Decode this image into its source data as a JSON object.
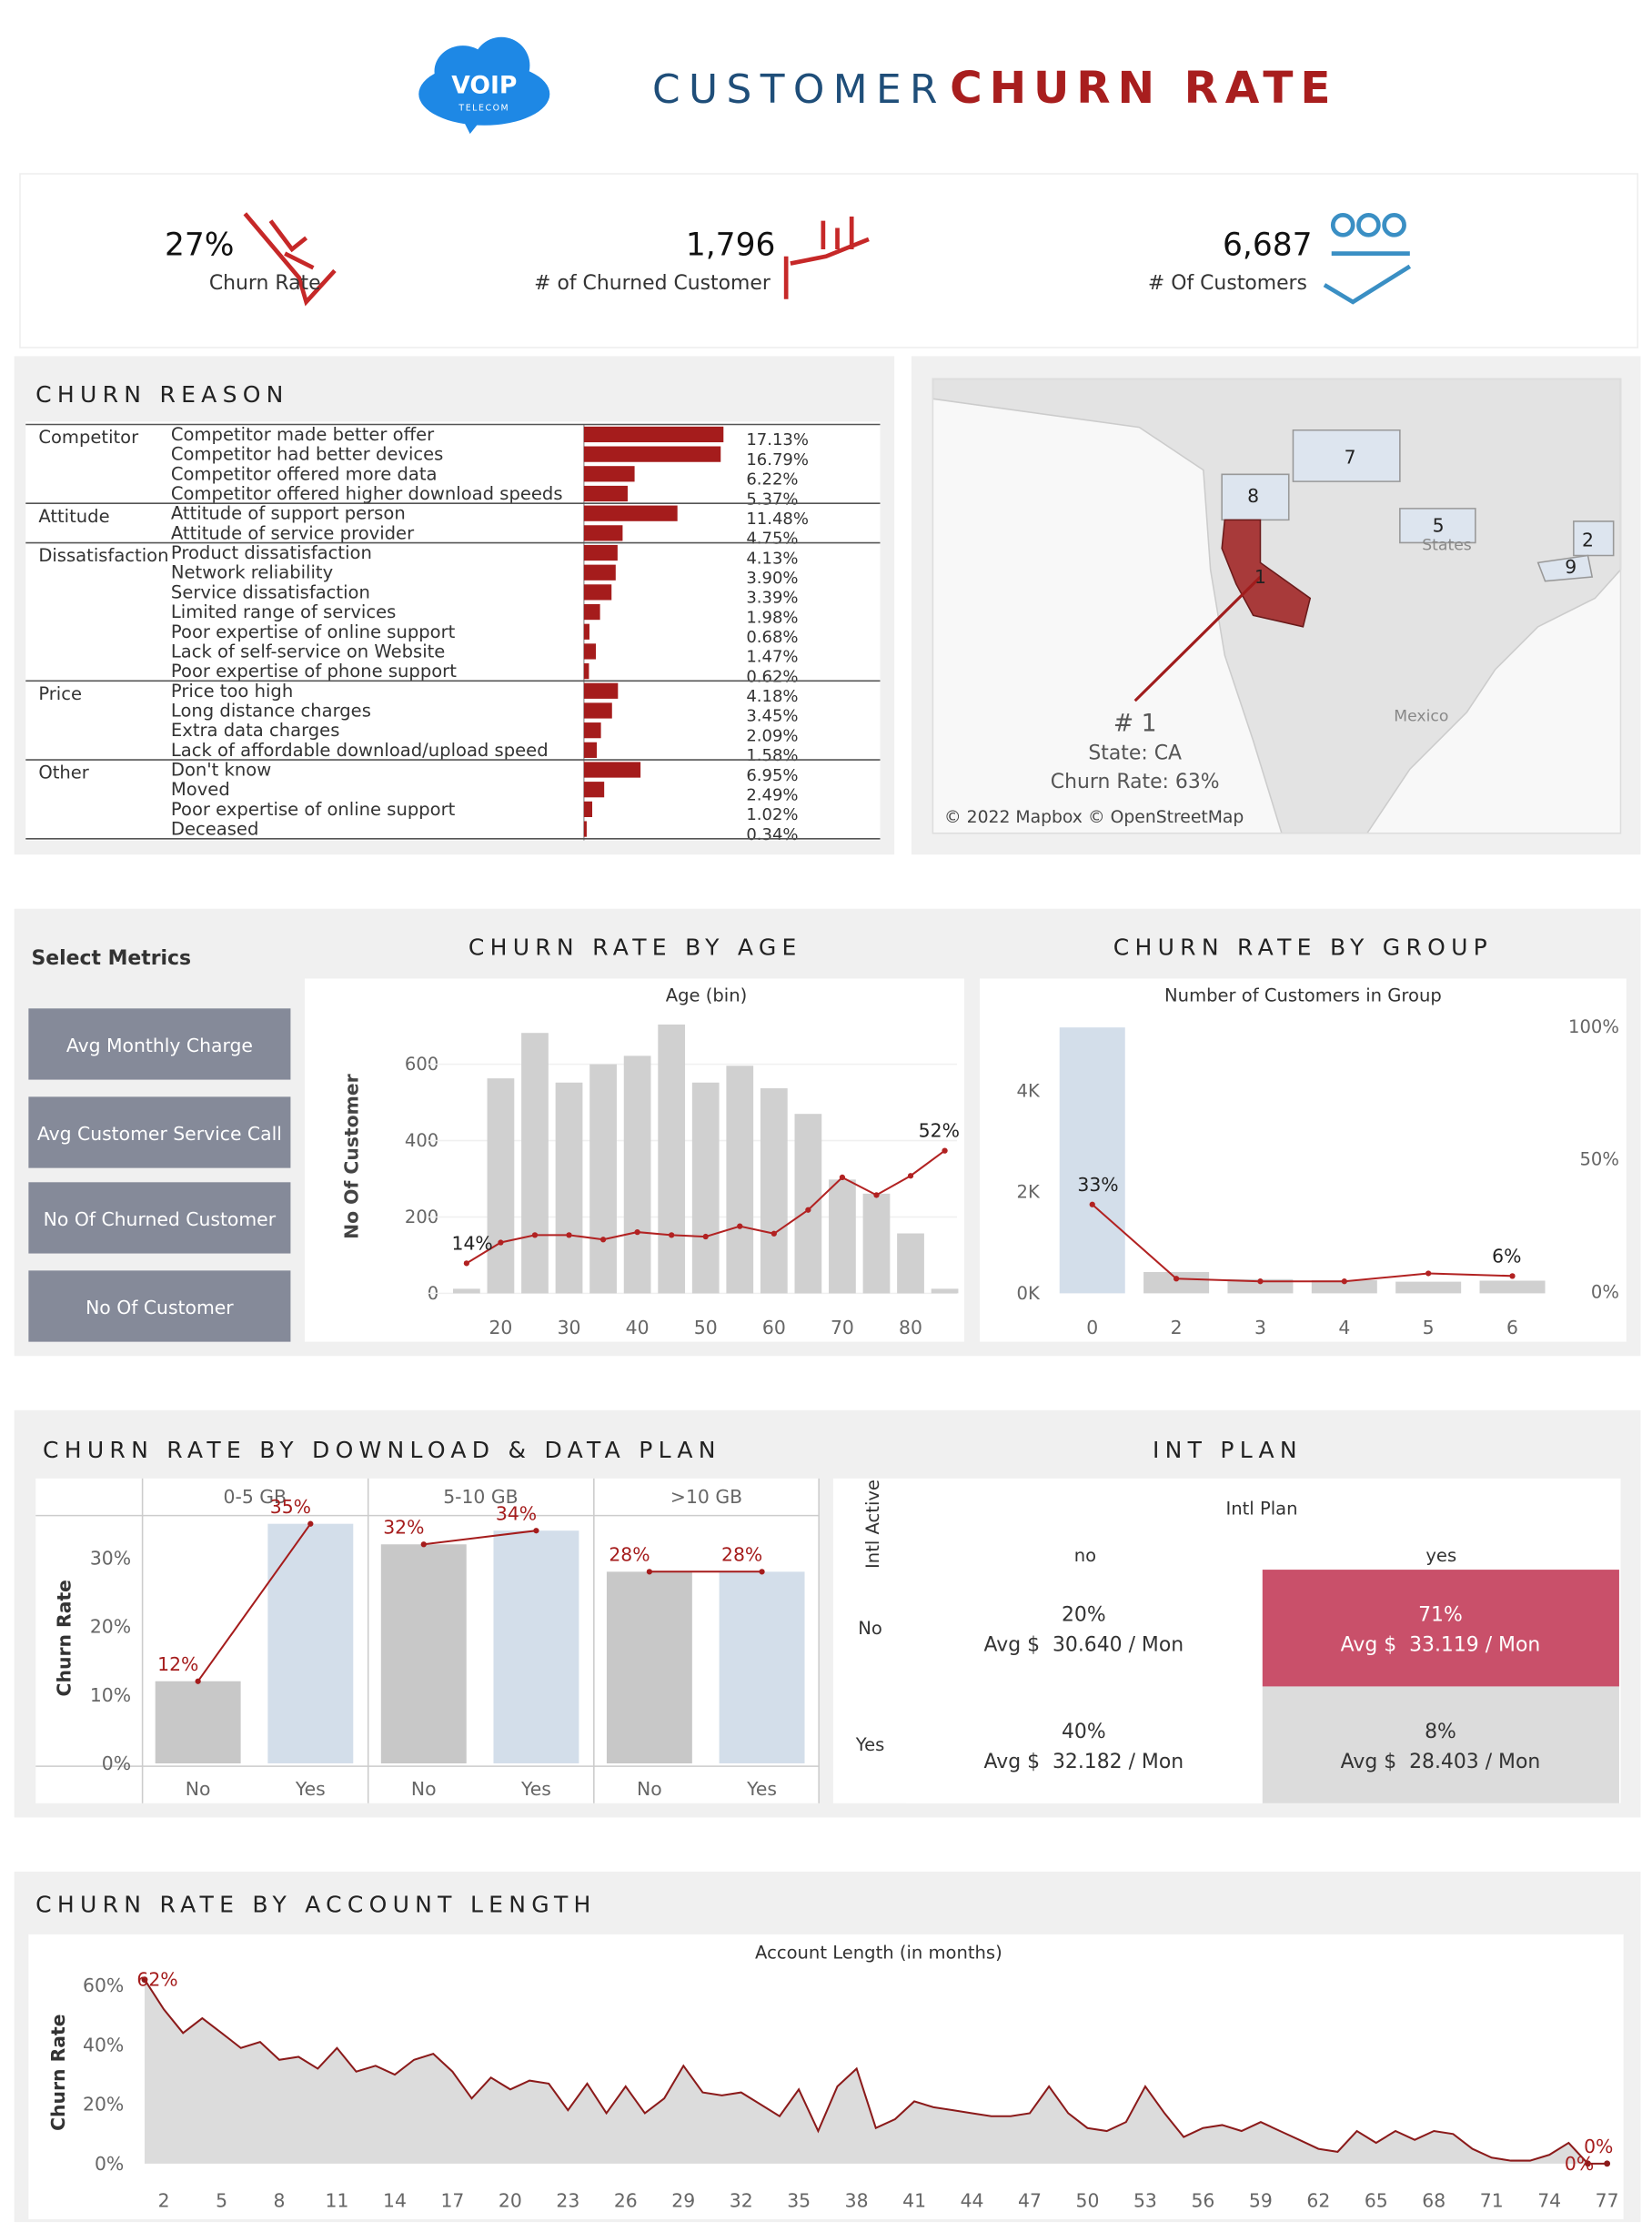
{
  "header": {
    "logo": "VOIP",
    "logo_sub": "TELECOM",
    "title_a": "CUSTOMER",
    "title_b": "CHURN RATE"
  },
  "kpis": [
    {
      "value": "27%",
      "label": "Churn Rate"
    },
    {
      "value": "1,796",
      "label": "# of Churned Customer"
    },
    {
      "value": "6,687",
      "label": "# Of Customers"
    }
  ],
  "map": {
    "labels": [
      "1",
      "2",
      "5",
      "7",
      "8",
      "9"
    ],
    "country_labels": [
      "States",
      "Mexico"
    ],
    "tooltip": [
      "# 1",
      "State: CA",
      "Churn Rate: 63%"
    ],
    "credit": "© 2022 Mapbox © OpenStreetMap"
  },
  "metrics": {
    "title": "Select Metrics",
    "buttons": [
      "Avg Monthly Charge",
      "Avg Customer Service Call",
      "No Of Churned Customer",
      "No Of Customer"
    ]
  },
  "intl_plan": {
    "title": "INT PLAN",
    "column_header": "Intl Plan",
    "row_header": "Intl Active",
    "columns": [
      "no",
      "yes"
    ],
    "rows": [
      "No",
      "Yes"
    ],
    "cells": [
      [
        {
          "rate": "20%",
          "avg": "Avg $  30.640 / Mon"
        },
        {
          "rate": "71%",
          "avg": "Avg $  33.119 / Mon"
        }
      ],
      [
        {
          "rate": "40%",
          "avg": "Avg $  32.182 / Mon"
        },
        {
          "rate": "8%",
          "avg": "Avg $  28.403 / Mon"
        }
      ]
    ],
    "colors": [
      [
        "#ffffff",
        "#c9506a"
      ],
      [
        "#ffffff",
        "#dcdcdc"
      ]
    ]
  },
  "chart_data": [
    {
      "type": "hbar",
      "title": "CHURN REASON",
      "color": "#a51c1c",
      "groups": [
        {
          "name": "Competitor",
          "categories": [
            "Competitor made better offer",
            "Competitor had better devices",
            "Competitor offered more data",
            "Competitor offered higher download speeds"
          ],
          "values": [
            17.13,
            16.79,
            6.22,
            5.37
          ],
          "value_labels": [
            "17.13%",
            "16.79%",
            "6.22%",
            "5.37%"
          ]
        },
        {
          "name": "Attitude",
          "categories": [
            "Attitude of support person",
            "Attitude of service provider"
          ],
          "values": [
            11.48,
            4.75
          ],
          "value_labels": [
            "11.48%",
            "4.75%"
          ]
        },
        {
          "name": "Dissatisfaction",
          "categories": [
            "Product dissatisfaction",
            "Network reliability",
            "Service dissatisfaction",
            "Limited range of services",
            "Poor expertise of online support",
            "Lack of self-service on Website",
            "Poor expertise of phone support"
          ],
          "values": [
            4.13,
            3.9,
            3.39,
            1.98,
            0.68,
            1.47,
            0.62
          ],
          "value_labels": [
            "4.13%",
            "3.90%",
            "3.39%",
            "1.98%",
            "0.68%",
            "1.47%",
            "0.62%"
          ]
        },
        {
          "name": "Price",
          "categories": [
            "Price too high",
            "Long distance charges",
            "Extra data charges",
            "Lack of affordable download/upload speed"
          ],
          "values": [
            4.18,
            3.45,
            2.09,
            1.58
          ],
          "value_labels": [
            "4.18%",
            "3.45%",
            "2.09%",
            "1.58%"
          ]
        },
        {
          "name": "Other",
          "categories": [
            "Don't know",
            "Moved",
            "Poor expertise of online support",
            "Deceased"
          ],
          "values": [
            6.95,
            2.49,
            1.02,
            0.34
          ],
          "value_labels": [
            "6.95%",
            "2.49%",
            "1.02%",
            "0.34%"
          ]
        }
      ]
    },
    {
      "type": "combo",
      "title": "CHURN RATE BY AGE",
      "x_label": "Age (bin)",
      "y_label": "No Of Customer",
      "grid": true,
      "x": [
        15,
        20,
        25,
        30,
        35,
        40,
        45,
        50,
        55,
        60,
        65,
        70,
        75,
        80,
        85
      ],
      "xlim": [
        13,
        87
      ],
      "xticks": [
        20,
        30,
        40,
        50,
        60,
        70,
        80
      ],
      "ylim": [
        0,
        720
      ],
      "yticks": [
        0,
        200,
        400,
        600
      ],
      "y2lim": [
        0,
        100
      ],
      "series": [
        {
          "color": "#d0d0d0",
          "values": [
            12,
            563,
            682,
            552,
            600,
            622,
            704,
            552,
            596,
            537,
            470,
            298,
            261,
            157,
            12
          ]
        },
        {
          "color": "#b22222",
          "axis": "y2",
          "values": [
            14,
            21,
            23.5,
            23.5,
            22,
            24.5,
            23.5,
            23,
            26.5,
            24,
            32,
            43,
            37,
            43.5,
            52
          ],
          "value_labels": [
            "14%",
            null,
            null,
            null,
            null,
            null,
            null,
            null,
            null,
            null,
            null,
            null,
            null,
            null,
            "52%"
          ]
        }
      ]
    },
    {
      "type": "combo",
      "title": "CHURN RATE BY GROUP",
      "x_label": "Number of Customers in Group",
      "categories": [
        "0",
        "2",
        "3",
        "4",
        "5",
        "6"
      ],
      "ylim": [
        0,
        5400
      ],
      "yticks": [
        {
          "value": 0,
          "label": "0K"
        },
        {
          "value": 2000,
          "label": "2K"
        },
        {
          "value": 4000,
          "label": "4K"
        }
      ],
      "y2lim": [
        0,
        100
      ],
      "y2ticks": [
        {
          "value": 0,
          "label": "0%"
        },
        {
          "value": 50,
          "label": "50%"
        },
        {
          "value": 100,
          "label": "100%"
        }
      ],
      "series": [
        {
          "color": "#d0d0d0",
          "colors": [
            "#d3deea",
            "#d0d0d0",
            "#d0d0d0",
            "#d0d0d0",
            "#d0d0d0",
            "#d0d0d0"
          ],
          "values": [
            5250,
            420,
            280,
            260,
            230,
            250
          ]
        },
        {
          "color": "#b22222",
          "axis": "y2",
          "values": [
            33,
            5,
            4,
            4,
            7,
            6
          ],
          "value_labels": [
            "33%",
            null,
            null,
            null,
            null,
            "6%"
          ]
        }
      ]
    },
    {
      "type": "panel_bar",
      "title": "CHURN RATE BY DOWNLOAD & DATA  PLAN",
      "y_label": "Churn Rate",
      "categories": [
        "No",
        "Yes"
      ],
      "colors": [
        "#c8c8c8",
        "#d3deea"
      ],
      "line_color": "#a51c1c",
      "ylim": [
        0,
        36
      ],
      "yticks": [
        {
          "value": 0,
          "label": "0%"
        },
        {
          "value": 10,
          "label": "10%"
        },
        {
          "value": 20,
          "label": "20%"
        },
        {
          "value": 30,
          "label": "30%"
        }
      ],
      "series": [
        {
          "name": "0-5 GB",
          "values": [
            12,
            35
          ],
          "value_labels": [
            "12%",
            "35%"
          ]
        },
        {
          "name": "5-10 GB",
          "values": [
            32,
            34
          ],
          "value_labels": [
            "32%",
            "34%"
          ]
        },
        {
          "name": ">10 GB",
          "values": [
            28,
            28
          ],
          "value_labels": [
            "28%",
            "28%"
          ]
        }
      ]
    },
    {
      "type": "area",
      "title": "CHURN RATE BY ACCOUNT LENGTH",
      "x_label": "Account Length (in months)",
      "y_label": "Churn Rate",
      "color": "#8b1a1a",
      "fill": "#dcdcdc",
      "x": [
        1,
        2,
        3,
        4,
        5,
        6,
        7,
        8,
        9,
        10,
        11,
        12,
        13,
        14,
        15,
        16,
        17,
        18,
        19,
        20,
        21,
        22,
        23,
        24,
        25,
        26,
        27,
        28,
        29,
        30,
        31,
        32,
        33,
        34,
        35,
        36,
        37,
        38,
        39,
        40,
        41,
        42,
        43,
        44,
        45,
        46,
        47,
        48,
        49,
        50,
        51,
        52,
        53,
        54,
        55,
        56,
        57,
        58,
        59,
        60,
        61,
        62,
        63,
        64,
        65,
        66,
        67,
        68,
        69,
        70,
        71,
        72,
        73,
        74,
        75,
        76,
        77
      ],
      "values": [
        62,
        52,
        44,
        49,
        44,
        39,
        41,
        35,
        36,
        32,
        39,
        31,
        33,
        30,
        35,
        37,
        31,
        22,
        29,
        25,
        28,
        27,
        18,
        27,
        17,
        26,
        17,
        22,
        33,
        24,
        23,
        24,
        20,
        16,
        25,
        11,
        26,
        32,
        12,
        15,
        21,
        19,
        18,
        17,
        16,
        16,
        17,
        26,
        17,
        12,
        11,
        14,
        26,
        17,
        9,
        12,
        13,
        11,
        14,
        11,
        8,
        5,
        4,
        11,
        7,
        11,
        8,
        11,
        10,
        5,
        2,
        1,
        1,
        3,
        7,
        0,
        0
      ],
      "value_labels": [
        "62%",
        null,
        null,
        null,
        null,
        null,
        null,
        null,
        null,
        null,
        null,
        null,
        null,
        null,
        null,
        null,
        null,
        null,
        null,
        null,
        null,
        null,
        null,
        null,
        null,
        null,
        null,
        null,
        null,
        null,
        null,
        null,
        null,
        null,
        null,
        null,
        null,
        null,
        null,
        null,
        null,
        null,
        null,
        null,
        null,
        null,
        null,
        null,
        null,
        null,
        null,
        null,
        null,
        null,
        null,
        null,
        null,
        null,
        null,
        null,
        null,
        null,
        null,
        null,
        null,
        null,
        null,
        null,
        null,
        null,
        null,
        null,
        null,
        null,
        null,
        "0%",
        "0%"
      ],
      "xlim": [
        1,
        77
      ],
      "xticks": [
        2,
        5,
        8,
        11,
        14,
        17,
        20,
        23,
        26,
        29,
        32,
        35,
        38,
        41,
        44,
        47,
        50,
        53,
        56,
        59,
        62,
        65,
        68,
        71,
        74,
        77
      ],
      "ylim": [
        0,
        65
      ],
      "yticks": [
        {
          "value": 0,
          "label": "0%"
        },
        {
          "value": 20,
          "label": "20%"
        },
        {
          "value": 40,
          "label": "40%"
        },
        {
          "value": 60,
          "label": "60%"
        }
      ]
    }
  ]
}
